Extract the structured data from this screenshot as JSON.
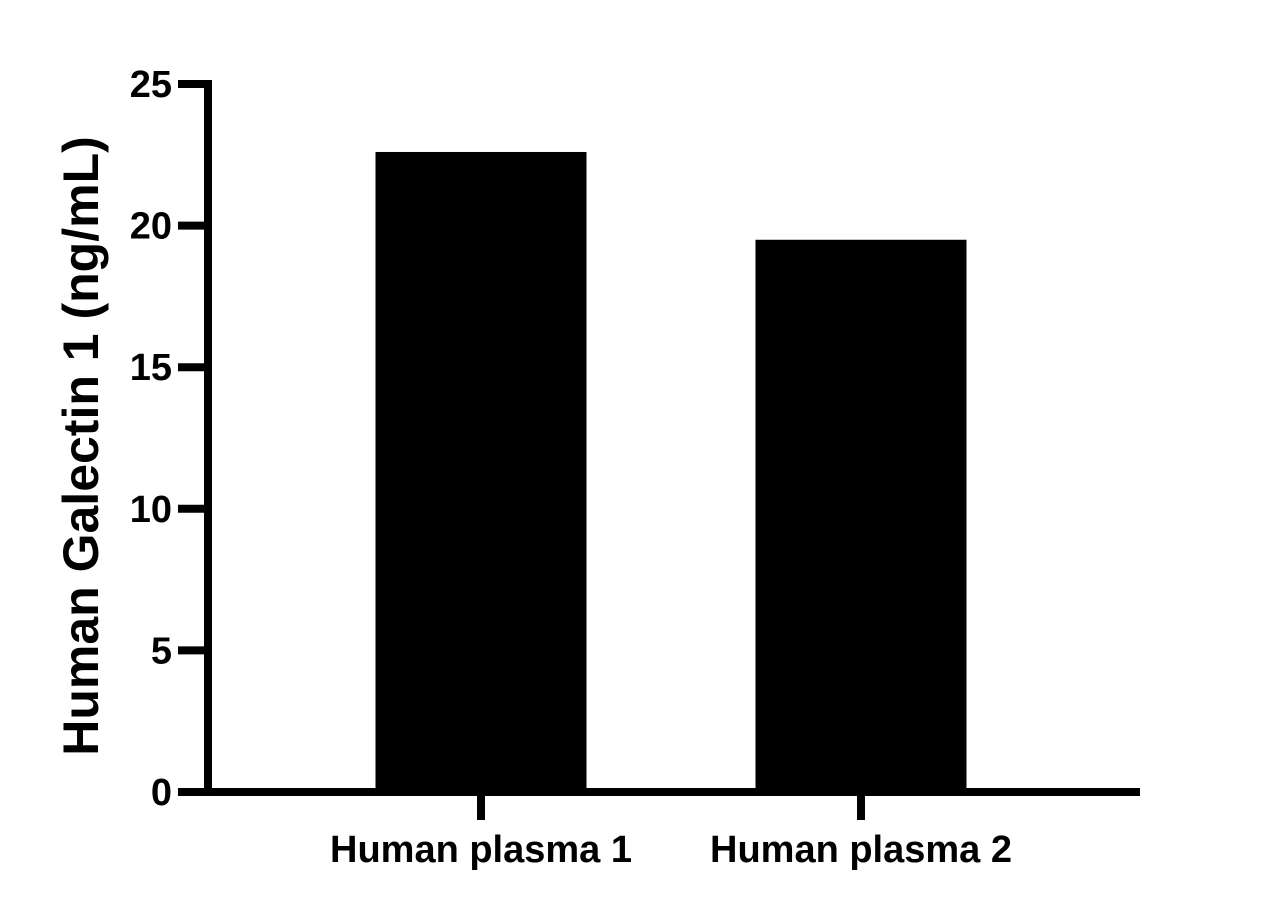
{
  "chart_data": {
    "type": "bar",
    "title": "",
    "xlabel": "",
    "ylabel": "Human Galectin 1 (ng/mL)",
    "categories": [
      "Human plasma 1",
      "Human plasma 2"
    ],
    "values": [
      22.6,
      19.5
    ],
    "ylim": [
      0,
      25
    ],
    "yticks": [
      0,
      5,
      10,
      15,
      20,
      25
    ],
    "ytick_labels": [
      "0",
      "5",
      "10",
      "15",
      "20",
      "25"
    ],
    "grid": false,
    "legend": "none",
    "bar_color": "#000000",
    "axis_color": "#000000"
  }
}
